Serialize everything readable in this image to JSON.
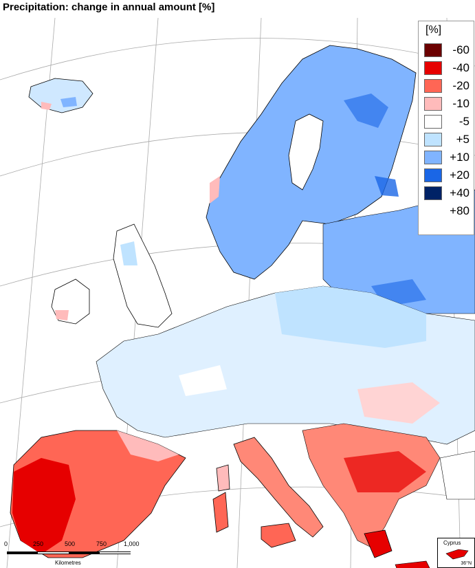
{
  "title": "Precipitation: change in annual amount [%]",
  "legend": {
    "unit": "[%]",
    "items": [
      {
        "label": "-60",
        "color": "#6b0000"
      },
      {
        "label": "-40",
        "color": "#e60000"
      },
      {
        "label": "-20",
        "color": "#ff6655"
      },
      {
        "label": "-10",
        "color": "#ffbbbb"
      },
      {
        "label": "-5",
        "color": "#ffffff"
      },
      {
        "label": "+5",
        "color": "#bfe3ff"
      },
      {
        "label": "+10",
        "color": "#80b4ff"
      },
      {
        "label": "+20",
        "color": "#1a66e6"
      },
      {
        "label": "+40",
        "color": "#002266"
      },
      {
        "label": "+80",
        "color": "#ffffff"
      }
    ]
  },
  "scale_bar": {
    "ticks": [
      "0",
      "250",
      "500",
      "750",
      "1,000"
    ],
    "unit": "Kilometres"
  },
  "inset": {
    "label": "Cyprus",
    "code": "36°N"
  }
}
